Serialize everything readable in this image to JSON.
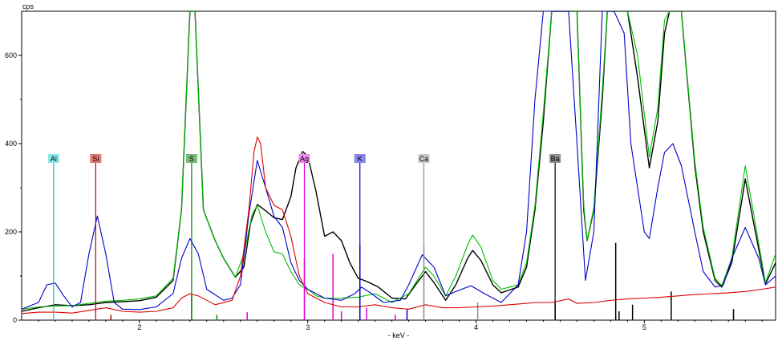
{
  "chart_data": {
    "type": "line",
    "xlabel": "- keV -",
    "ylabel": "cps",
    "xlim": [
      1.3,
      5.78
    ],
    "ylim": [
      0,
      700
    ],
    "x_ticks": [
      2,
      3,
      4,
      5
    ],
    "y_ticks": [
      0,
      200,
      400,
      600
    ],
    "grid": false,
    "series": [
      {
        "color": "#000000",
        "points": [
          [
            1.3,
            20
          ],
          [
            1.4,
            28
          ],
          [
            1.5,
            35
          ],
          [
            1.6,
            33
          ],
          [
            1.7,
            35
          ],
          [
            1.8,
            40
          ],
          [
            1.9,
            42
          ],
          [
            2.0,
            44
          ],
          [
            2.1,
            52
          ],
          [
            2.2,
            90
          ],
          [
            2.25,
            250
          ],
          [
            2.3,
            700
          ],
          [
            2.33,
            700
          ],
          [
            2.38,
            250
          ],
          [
            2.45,
            180
          ],
          [
            2.5,
            140
          ],
          [
            2.57,
            97
          ],
          [
            2.62,
            120
          ],
          [
            2.66,
            220
          ],
          [
            2.7,
            262
          ],
          [
            2.75,
            248
          ],
          [
            2.8,
            232
          ],
          [
            2.85,
            228
          ],
          [
            2.9,
            280
          ],
          [
            2.93,
            345
          ],
          [
            2.97,
            382
          ],
          [
            3.0,
            372
          ],
          [
            3.05,
            290
          ],
          [
            3.1,
            190
          ],
          [
            3.15,
            200
          ],
          [
            3.2,
            180
          ],
          [
            3.25,
            130
          ],
          [
            3.3,
            95
          ],
          [
            3.35,
            88
          ],
          [
            3.42,
            75
          ],
          [
            3.5,
            50
          ],
          [
            3.58,
            48
          ],
          [
            3.65,
            85
          ],
          [
            3.7,
            110
          ],
          [
            3.75,
            85
          ],
          [
            3.82,
            45
          ],
          [
            3.88,
            80
          ],
          [
            3.95,
            140
          ],
          [
            3.98,
            158
          ],
          [
            4.03,
            135
          ],
          [
            4.1,
            80
          ],
          [
            4.15,
            62
          ],
          [
            4.25,
            75
          ],
          [
            4.3,
            120
          ],
          [
            4.35,
            250
          ],
          [
            4.4,
            450
          ],
          [
            4.45,
            700
          ],
          [
            4.6,
            700
          ],
          [
            4.64,
            250
          ],
          [
            4.66,
            180
          ],
          [
            4.7,
            250
          ],
          [
            4.75,
            500
          ],
          [
            4.78,
            700
          ],
          [
            4.9,
            700
          ],
          [
            4.96,
            550
          ],
          [
            5.03,
            345
          ],
          [
            5.08,
            450
          ],
          [
            5.12,
            650
          ],
          [
            5.15,
            700
          ],
          [
            5.22,
            700
          ],
          [
            5.3,
            350
          ],
          [
            5.35,
            200
          ],
          [
            5.42,
            90
          ],
          [
            5.46,
            75
          ],
          [
            5.52,
            130
          ],
          [
            5.6,
            320
          ],
          [
            5.65,
            220
          ],
          [
            5.72,
            82
          ],
          [
            5.78,
            130
          ]
        ]
      },
      {
        "color": "#00c000",
        "points": [
          [
            1.3,
            25
          ],
          [
            1.4,
            30
          ],
          [
            1.5,
            32
          ],
          [
            1.6,
            33
          ],
          [
            1.7,
            38
          ],
          [
            1.8,
            43
          ],
          [
            1.9,
            45
          ],
          [
            2.0,
            48
          ],
          [
            2.1,
            55
          ],
          [
            2.2,
            95
          ],
          [
            2.25,
            250
          ],
          [
            2.3,
            700
          ],
          [
            2.33,
            700
          ],
          [
            2.38,
            250
          ],
          [
            2.45,
            180
          ],
          [
            2.5,
            140
          ],
          [
            2.57,
            97
          ],
          [
            2.62,
            150
          ],
          [
            2.67,
            240
          ],
          [
            2.7,
            260
          ],
          [
            2.75,
            200
          ],
          [
            2.8,
            155
          ],
          [
            2.85,
            150
          ],
          [
            2.9,
            110
          ],
          [
            2.95,
            80
          ],
          [
            3.0,
            70
          ],
          [
            3.05,
            55
          ],
          [
            3.1,
            50
          ],
          [
            3.2,
            50
          ],
          [
            3.3,
            52
          ],
          [
            3.4,
            60
          ],
          [
            3.5,
            40
          ],
          [
            3.6,
            60
          ],
          [
            3.7,
            120
          ],
          [
            3.75,
            100
          ],
          [
            3.82,
            55
          ],
          [
            3.88,
            100
          ],
          [
            3.95,
            170
          ],
          [
            3.98,
            193
          ],
          [
            4.03,
            165
          ],
          [
            4.1,
            90
          ],
          [
            4.15,
            70
          ],
          [
            4.25,
            80
          ],
          [
            4.3,
            130
          ],
          [
            4.35,
            260
          ],
          [
            4.4,
            470
          ],
          [
            4.45,
            700
          ],
          [
            4.6,
            700
          ],
          [
            4.64,
            260
          ],
          [
            4.66,
            180
          ],
          [
            4.7,
            255
          ],
          [
            4.75,
            520
          ],
          [
            4.78,
            700
          ],
          [
            4.9,
            700
          ],
          [
            4.96,
            600
          ],
          [
            5.03,
            370
          ],
          [
            5.08,
            480
          ],
          [
            5.12,
            680
          ],
          [
            5.15,
            700
          ],
          [
            5.22,
            700
          ],
          [
            5.3,
            360
          ],
          [
            5.35,
            210
          ],
          [
            5.42,
            95
          ],
          [
            5.46,
            78
          ],
          [
            5.52,
            140
          ],
          [
            5.6,
            350
          ],
          [
            5.65,
            240
          ],
          [
            5.72,
            85
          ],
          [
            5.78,
            150
          ]
        ]
      },
      {
        "color": "#0000cc",
        "points": [
          [
            1.3,
            25
          ],
          [
            1.4,
            40
          ],
          [
            1.45,
            80
          ],
          [
            1.5,
            84
          ],
          [
            1.55,
            55
          ],
          [
            1.6,
            30
          ],
          [
            1.65,
            40
          ],
          [
            1.7,
            150
          ],
          [
            1.75,
            236
          ],
          [
            1.8,
            150
          ],
          [
            1.85,
            40
          ],
          [
            1.9,
            25
          ],
          [
            2.0,
            24
          ],
          [
            2.1,
            30
          ],
          [
            2.2,
            60
          ],
          [
            2.25,
            140
          ],
          [
            2.3,
            185
          ],
          [
            2.35,
            150
          ],
          [
            2.4,
            70
          ],
          [
            2.5,
            45
          ],
          [
            2.55,
            50
          ],
          [
            2.6,
            80
          ],
          [
            2.65,
            240
          ],
          [
            2.7,
            362
          ],
          [
            2.75,
            300
          ],
          [
            2.8,
            235
          ],
          [
            2.85,
            210
          ],
          [
            2.9,
            130
          ],
          [
            2.95,
            90
          ],
          [
            3.0,
            70
          ],
          [
            3.1,
            50
          ],
          [
            3.2,
            45
          ],
          [
            3.28,
            60
          ],
          [
            3.32,
            75
          ],
          [
            3.38,
            60
          ],
          [
            3.45,
            40
          ],
          [
            3.55,
            45
          ],
          [
            3.6,
            80
          ],
          [
            3.68,
            148
          ],
          [
            3.75,
            120
          ],
          [
            3.82,
            55
          ],
          [
            3.88,
            65
          ],
          [
            3.97,
            78
          ],
          [
            4.05,
            60
          ],
          [
            4.15,
            40
          ],
          [
            4.25,
            80
          ],
          [
            4.3,
            200
          ],
          [
            4.35,
            500
          ],
          [
            4.4,
            700
          ],
          [
            4.55,
            700
          ],
          [
            4.6,
            400
          ],
          [
            4.65,
            90
          ],
          [
            4.7,
            200
          ],
          [
            4.75,
            700
          ],
          [
            4.82,
            700
          ],
          [
            4.88,
            650
          ],
          [
            4.92,
            400
          ],
          [
            5.0,
            200
          ],
          [
            5.03,
            185
          ],
          [
            5.08,
            300
          ],
          [
            5.12,
            380
          ],
          [
            5.17,
            400
          ],
          [
            5.22,
            350
          ],
          [
            5.3,
            200
          ],
          [
            5.35,
            110
          ],
          [
            5.42,
            75
          ],
          [
            5.47,
            80
          ],
          [
            5.52,
            140
          ],
          [
            5.6,
            210
          ],
          [
            5.68,
            140
          ],
          [
            5.72,
            80
          ],
          [
            5.78,
            100
          ]
        ]
      },
      {
        "color": "#dd0000",
        "points": [
          [
            1.3,
            15
          ],
          [
            1.4,
            18
          ],
          [
            1.5,
            18
          ],
          [
            1.6,
            16
          ],
          [
            1.7,
            22
          ],
          [
            1.8,
            28
          ],
          [
            1.9,
            20
          ],
          [
            2.0,
            18
          ],
          [
            2.1,
            20
          ],
          [
            2.2,
            28
          ],
          [
            2.25,
            50
          ],
          [
            2.3,
            60
          ],
          [
            2.35,
            55
          ],
          [
            2.45,
            35
          ],
          [
            2.55,
            45
          ],
          [
            2.6,
            100
          ],
          [
            2.65,
            250
          ],
          [
            2.68,
            380
          ],
          [
            2.7,
            415
          ],
          [
            2.72,
            400
          ],
          [
            2.75,
            300
          ],
          [
            2.8,
            260
          ],
          [
            2.85,
            250
          ],
          [
            2.9,
            190
          ],
          [
            2.95,
            100
          ],
          [
            3.0,
            60
          ],
          [
            3.1,
            40
          ],
          [
            3.2,
            30
          ],
          [
            3.3,
            30
          ],
          [
            3.4,
            35
          ],
          [
            3.5,
            28
          ],
          [
            3.6,
            25
          ],
          [
            3.7,
            35
          ],
          [
            3.8,
            28
          ],
          [
            3.9,
            28
          ],
          [
            4.0,
            30
          ],
          [
            4.1,
            32
          ],
          [
            4.2,
            35
          ],
          [
            4.3,
            38
          ],
          [
            4.35,
            40
          ],
          [
            4.45,
            40
          ],
          [
            4.55,
            48
          ],
          [
            4.6,
            38
          ],
          [
            4.7,
            40
          ],
          [
            4.8,
            45
          ],
          [
            4.9,
            48
          ],
          [
            5.0,
            50
          ],
          [
            5.1,
            52
          ],
          [
            5.2,
            55
          ],
          [
            5.3,
            58
          ],
          [
            5.4,
            60
          ],
          [
            5.5,
            62
          ],
          [
            5.6,
            65
          ],
          [
            5.7,
            70
          ],
          [
            5.78,
            75
          ]
        ]
      }
    ],
    "element_markers": [
      {
        "label": "Al",
        "x": 1.49,
        "bg": "#88e8e8",
        "line": "#00c8c8"
      },
      {
        "label": "Si",
        "x": 1.74,
        "bg": "#e07878",
        "line": "#c00000"
      },
      {
        "label": "S",
        "x": 2.31,
        "bg": "#78b878",
        "line": "#008000"
      },
      {
        "label": "Ag",
        "x": 2.98,
        "bg": "#f088f0",
        "line": "#e000e0"
      },
      {
        "label": "K",
        "x": 3.31,
        "bg": "#8888f0",
        "line": "#0000c8"
      },
      {
        "label": "Ca",
        "x": 3.69,
        "bg": "#c8c8c8",
        "line": "#909090"
      },
      {
        "label": "Ba",
        "x": 4.47,
        "bg": "#909090",
        "line": "#000000"
      }
    ],
    "reference_lines": [
      {
        "x": 2.31,
        "h": 60,
        "color": "#008000"
      },
      {
        "x": 2.46,
        "h": 12,
        "color": "#008000"
      },
      {
        "x": 2.64,
        "h": 18,
        "color": "#e000e0"
      },
      {
        "x": 2.98,
        "h": 140,
        "color": "#e000e0"
      },
      {
        "x": 3.15,
        "h": 150,
        "color": "#e000e0"
      },
      {
        "x": 3.2,
        "h": 20,
        "color": "#e000e0"
      },
      {
        "x": 3.35,
        "h": 28,
        "color": "#e000e0"
      },
      {
        "x": 3.52,
        "h": 12,
        "color": "#e000e0"
      },
      {
        "x": 3.31,
        "h": 170,
        "color": "#0000c8"
      },
      {
        "x": 3.59,
        "h": 25,
        "color": "#0000c8"
      },
      {
        "x": 3.69,
        "h": 170,
        "color": "#909090"
      },
      {
        "x": 4.01,
        "h": 40,
        "color": "#909090"
      },
      {
        "x": 4.47,
        "h": 40,
        "color": "#000000"
      },
      {
        "x": 4.83,
        "h": 175,
        "color": "#000000"
      },
      {
        "x": 4.85,
        "h": 20,
        "color": "#000000"
      },
      {
        "x": 4.93,
        "h": 35,
        "color": "#000000"
      },
      {
        "x": 5.16,
        "h": 65,
        "color": "#000000"
      },
      {
        "x": 5.53,
        "h": 25,
        "color": "#000000"
      },
      {
        "x": 1.83,
        "h": 12,
        "color": "#c00000"
      }
    ]
  }
}
